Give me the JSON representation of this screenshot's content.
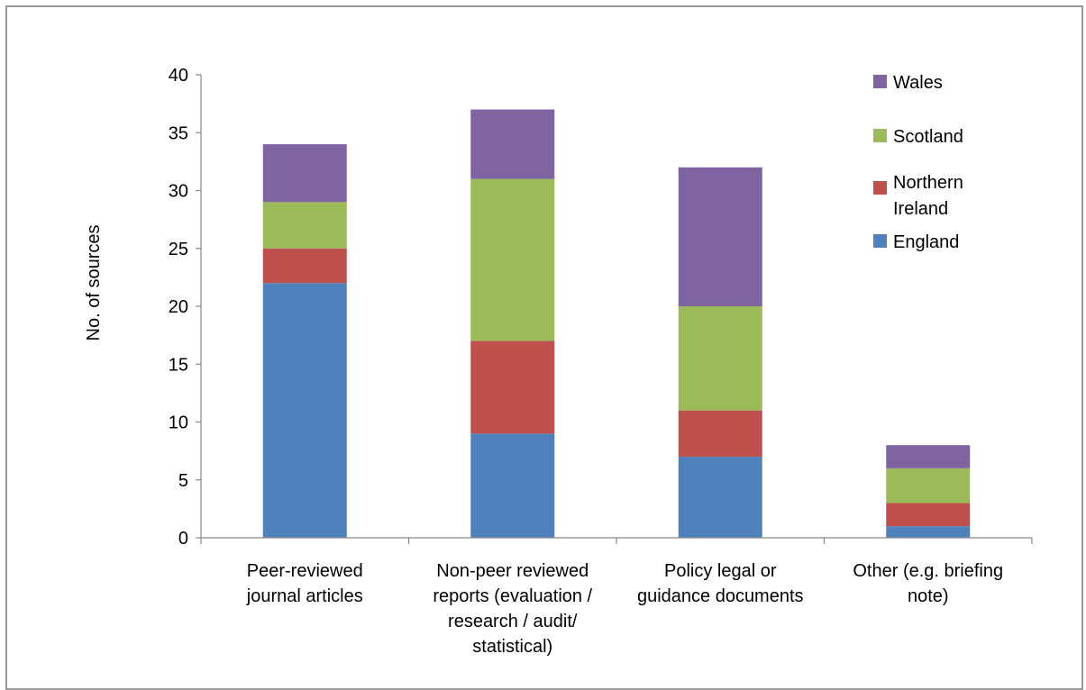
{
  "chart_data": {
    "type": "stacked-bar",
    "title": "",
    "xlabel": "",
    "ylabel": "No. of sources",
    "ylim": [
      0,
      40
    ],
    "yticks": [
      0,
      5,
      10,
      15,
      20,
      25,
      30,
      35,
      40
    ],
    "categories": [
      [
        "Peer-reviewed",
        "journal articles"
      ],
      [
        "Non-peer reviewed",
        "reports (evaluation /",
        "research / audit/",
        "statistical)"
      ],
      [
        "Policy legal or",
        "guidance documents"
      ],
      [
        "Other (e.g. briefing",
        "note)"
      ]
    ],
    "series": [
      {
        "name": "England",
        "color": "#4F81BD",
        "values": [
          22,
          9,
          7,
          1
        ]
      },
      {
        "name": "Northern Ireland",
        "legend_lines": [
          "Northern",
          "Ireland"
        ],
        "color": "#C0504D",
        "values": [
          3,
          8,
          4,
          2
        ]
      },
      {
        "name": "Scotland",
        "color": "#9BBB59",
        "values": [
          4,
          14,
          9,
          3
        ]
      },
      {
        "name": "Wales",
        "color": "#8064A2",
        "values": [
          5,
          6,
          12,
          2
        ]
      }
    ],
    "legend_order": [
      "Wales",
      "Scotland",
      "Northern Ireland",
      "England"
    ],
    "legend_position": "top-right",
    "grid": false
  }
}
